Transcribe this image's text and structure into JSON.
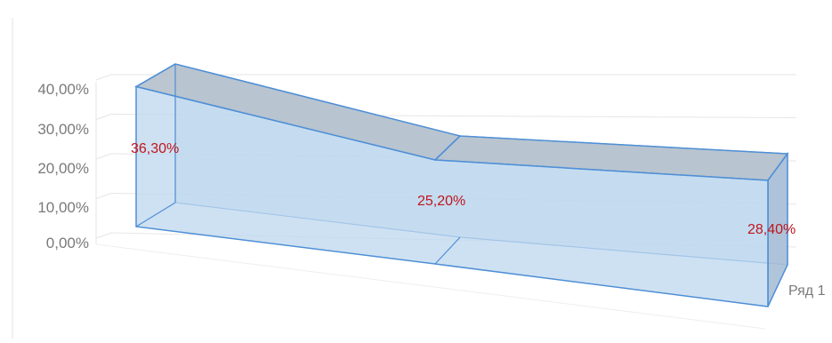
{
  "chart_data": {
    "type": "area",
    "variant": "3d",
    "categories": [
      "",
      "",
      ""
    ],
    "series": [
      {
        "name": "Ряд 1",
        "values": [
          36.3,
          25.2,
          28.4
        ]
      }
    ],
    "data_labels": [
      "36,30%",
      "25,20%",
      "28,40%"
    ],
    "y_tick_labels": [
      "0,00%",
      "10,00%",
      "20,00%",
      "30,00%",
      "40,00%"
    ],
    "ylim": [
      0,
      40
    ],
    "grid": true,
    "legend": "none",
    "title": "",
    "xlabel": "",
    "ylabel": "",
    "colors": {
      "fill": "#bdd7ee",
      "edge": "#4f8fd6",
      "top_face": "#b4c0cc",
      "grid": "#e6e6e6",
      "tick_text": "#7a7a7a",
      "data_label": "#c0141c"
    }
  }
}
